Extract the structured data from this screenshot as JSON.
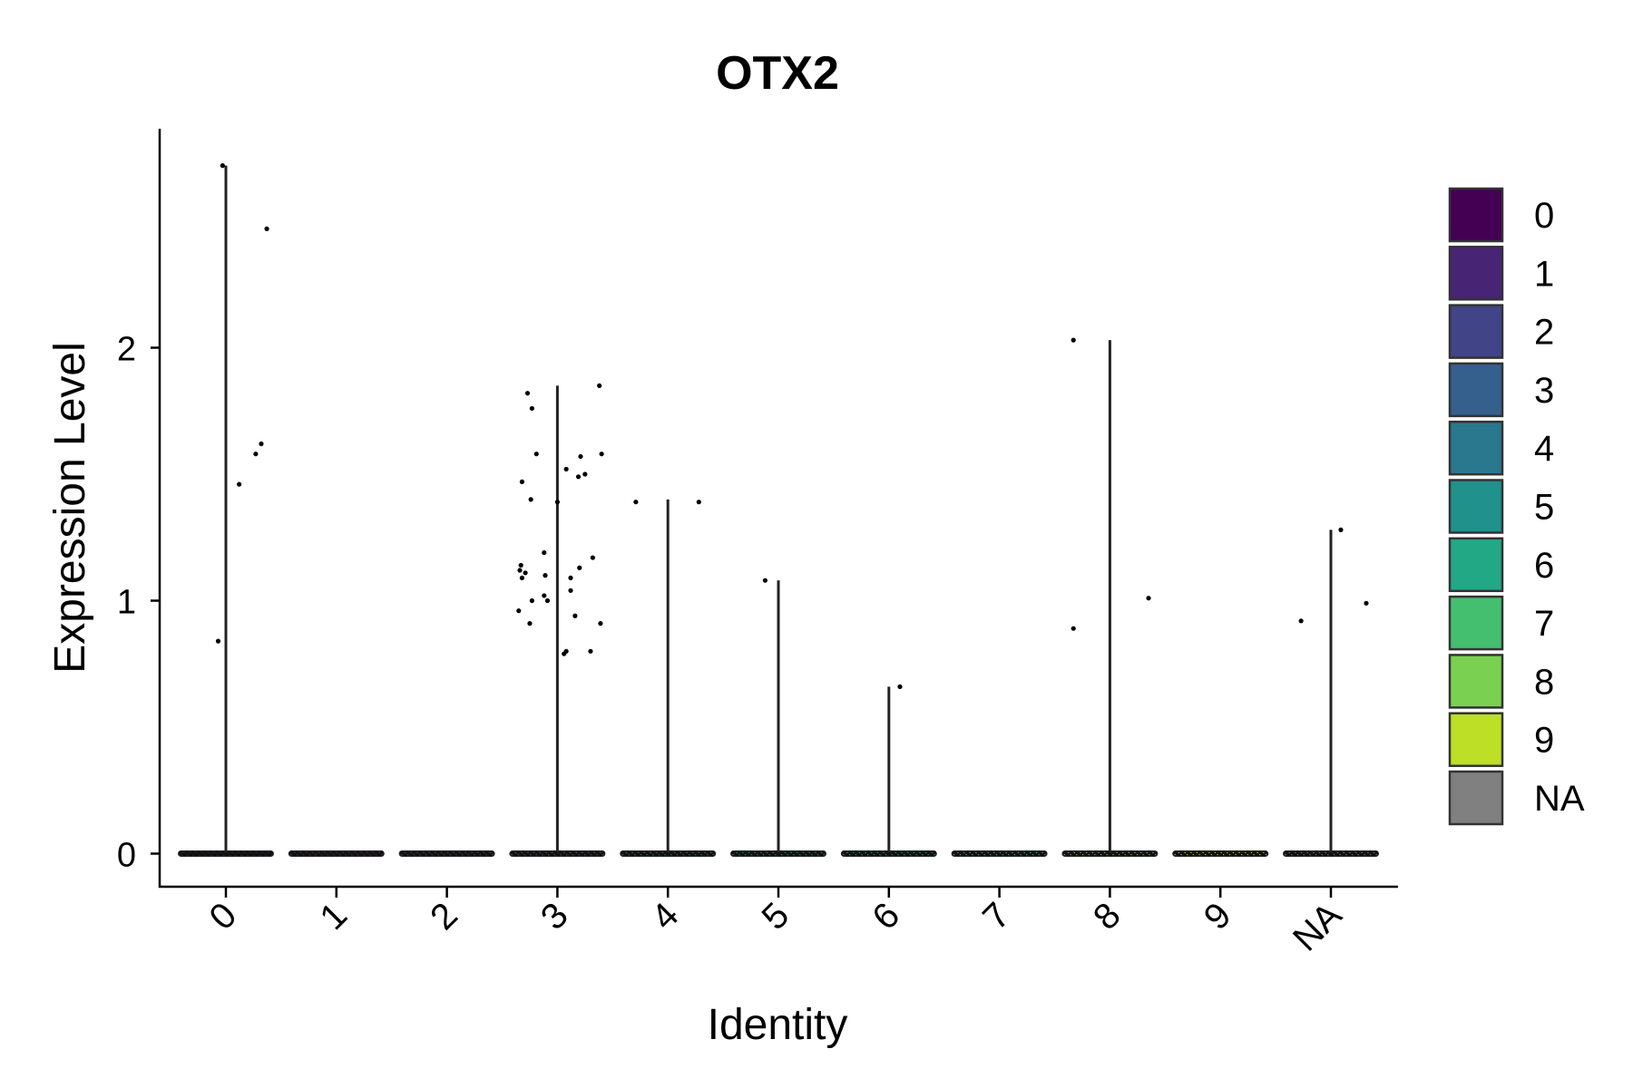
{
  "chart_data": {
    "type": "violin",
    "title": "OTX2",
    "xlabel": "Identity",
    "ylabel": "Expression Level",
    "categories": [
      "0",
      "1",
      "2",
      "3",
      "4",
      "5",
      "6",
      "7",
      "8",
      "9",
      "NA"
    ],
    "ylim": [
      -0.13,
      2.8
    ],
    "yticks": [
      0,
      1,
      2
    ],
    "grid": false,
    "legend_position": "right",
    "colors": [
      "#440154",
      "#482475",
      "#414487",
      "#355f8d",
      "#2a788e",
      "#21918c",
      "#22a884",
      "#44bf70",
      "#7ad151",
      "#bddf26",
      "#808080"
    ],
    "violin_max": [
      2.72,
      0,
      0,
      1.85,
      1.4,
      1.08,
      0.66,
      0,
      2.03,
      0,
      1.28
    ],
    "points": [
      {
        "category": "0",
        "x_offset": -0.03,
        "y": 2.72
      },
      {
        "category": "0",
        "x_offset": 0.37,
        "y": 2.47
      },
      {
        "category": "0",
        "x_offset": 0.32,
        "y": 1.62
      },
      {
        "category": "0",
        "x_offset": 0.27,
        "y": 1.58
      },
      {
        "category": "0",
        "x_offset": 0.12,
        "y": 1.46
      },
      {
        "category": "0",
        "x_offset": -0.07,
        "y": 0.84
      },
      {
        "category": "3",
        "x_offset": -0.27,
        "y": 1.82
      },
      {
        "category": "3",
        "x_offset": -0.23,
        "y": 1.76
      },
      {
        "category": "3",
        "x_offset": 0.38,
        "y": 1.85
      },
      {
        "category": "3",
        "x_offset": -0.19,
        "y": 1.58
      },
      {
        "category": "3",
        "x_offset": 0.4,
        "y": 1.58
      },
      {
        "category": "3",
        "x_offset": 0.21,
        "y": 1.57
      },
      {
        "category": "3",
        "x_offset": 0.08,
        "y": 1.52
      },
      {
        "category": "3",
        "x_offset": 0.25,
        "y": 1.5
      },
      {
        "category": "3",
        "x_offset": 0.19,
        "y": 1.49
      },
      {
        "category": "3",
        "x_offset": -0.32,
        "y": 1.47
      },
      {
        "category": "3",
        "x_offset": -0.24,
        "y": 1.4
      },
      {
        "category": "3",
        "x_offset": 0.0,
        "y": 1.39
      },
      {
        "category": "3",
        "x_offset": -0.12,
        "y": 1.19
      },
      {
        "category": "3",
        "x_offset": 0.32,
        "y": 1.17
      },
      {
        "category": "3",
        "x_offset": -0.33,
        "y": 1.14
      },
      {
        "category": "3",
        "x_offset": 0.2,
        "y": 1.13
      },
      {
        "category": "3",
        "x_offset": -0.34,
        "y": 1.12
      },
      {
        "category": "3",
        "x_offset": -0.29,
        "y": 1.11
      },
      {
        "category": "3",
        "x_offset": -0.11,
        "y": 1.1
      },
      {
        "category": "3",
        "x_offset": -0.32,
        "y": 1.09
      },
      {
        "category": "3",
        "x_offset": 0.12,
        "y": 1.09
      },
      {
        "category": "3",
        "x_offset": 0.12,
        "y": 1.04
      },
      {
        "category": "3",
        "x_offset": -0.12,
        "y": 1.02
      },
      {
        "category": "3",
        "x_offset": -0.23,
        "y": 1.0
      },
      {
        "category": "3",
        "x_offset": -0.09,
        "y": 1.0
      },
      {
        "category": "3",
        "x_offset": -0.35,
        "y": 0.96
      },
      {
        "category": "3",
        "x_offset": 0.16,
        "y": 0.94
      },
      {
        "category": "3",
        "x_offset": -0.25,
        "y": 0.91
      },
      {
        "category": "3",
        "x_offset": 0.39,
        "y": 0.91
      },
      {
        "category": "3",
        "x_offset": 0.08,
        "y": 0.8
      },
      {
        "category": "3",
        "x_offset": 0.3,
        "y": 0.8
      },
      {
        "category": "3",
        "x_offset": 0.06,
        "y": 0.79
      },
      {
        "category": "4",
        "x_offset": -0.29,
        "y": 1.39
      },
      {
        "category": "4",
        "x_offset": 0.28,
        "y": 1.39
      },
      {
        "category": "5",
        "x_offset": -0.12,
        "y": 1.08
      },
      {
        "category": "6",
        "x_offset": 0.1,
        "y": 0.66
      },
      {
        "category": "8",
        "x_offset": -0.33,
        "y": 2.03
      },
      {
        "category": "8",
        "x_offset": -0.33,
        "y": 0.89
      },
      {
        "category": "8",
        "x_offset": 0.35,
        "y": 1.01
      },
      {
        "category": "NA",
        "x_offset": 0.09,
        "y": 1.28
      },
      {
        "category": "NA",
        "x_offset": -0.27,
        "y": 0.92
      },
      {
        "category": "NA",
        "x_offset": 0.32,
        "y": 0.99
      }
    ]
  }
}
